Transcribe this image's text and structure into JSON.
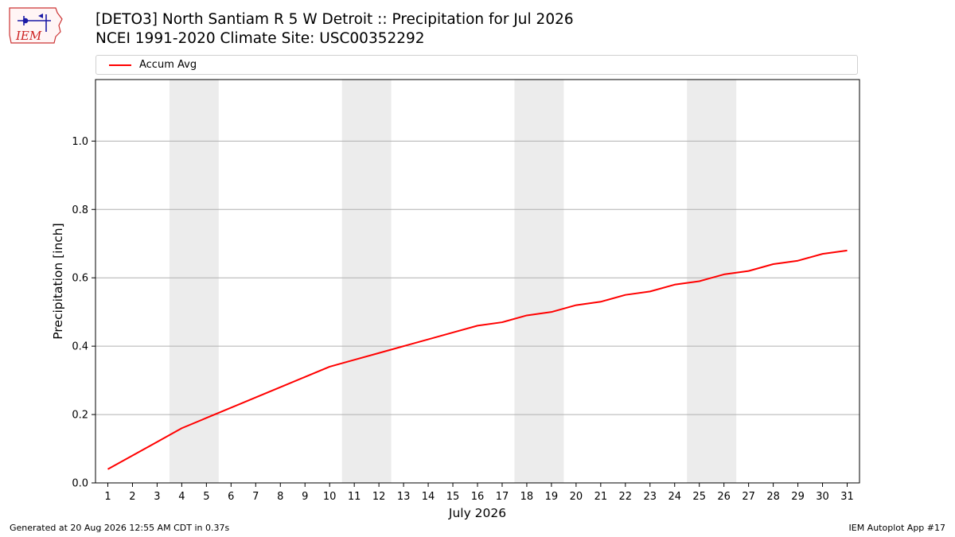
{
  "header": {
    "logo_text": "IEM",
    "title_line1": "[DETO3] North Santiam R 5 W Detroit :: Precipitation for Jul 2026",
    "title_line2": "NCEI 1991-2020 Climate Site: USC00352292"
  },
  "footer": {
    "generated": "Generated at 20 Aug 2026 12:55 AM CDT in 0.37s",
    "app": "IEM Autoplot App #17"
  },
  "colors": {
    "series": "#ff0000",
    "weekend_band": "#ececec",
    "grid": "#b0b0b0"
  },
  "chart_data": {
    "type": "line",
    "title": "[DETO3] North Santiam R 5 W Detroit :: Precipitation for Jul 2026",
    "subtitle": "NCEI 1991-2020 Climate Site: USC00352292",
    "xlabel": "July 2026",
    "ylabel": "Precipitation [inch]",
    "x": [
      1,
      2,
      3,
      4,
      5,
      6,
      7,
      8,
      9,
      10,
      11,
      12,
      13,
      14,
      15,
      16,
      17,
      18,
      19,
      20,
      21,
      22,
      23,
      24,
      25,
      26,
      27,
      28,
      29,
      30,
      31
    ],
    "xlim": [
      0.5,
      31.5
    ],
    "ylim": [
      0,
      1.18
    ],
    "yticks": [
      0.0,
      0.2,
      0.4,
      0.6,
      0.8,
      1.0
    ],
    "ytick_labels": [
      "0.0",
      "0.2",
      "0.4",
      "0.6",
      "0.8",
      "1.0"
    ],
    "grid": "horizontal",
    "legend_position": "top",
    "shaded_day_ranges": [
      [
        4,
        5
      ],
      [
        11,
        12
      ],
      [
        18,
        19
      ],
      [
        25,
        26
      ]
    ],
    "series": [
      {
        "name": "Accum Avg",
        "color": "#ff0000",
        "values": [
          0.04,
          0.08,
          0.12,
          0.16,
          0.19,
          0.22,
          0.25,
          0.28,
          0.31,
          0.34,
          0.36,
          0.38,
          0.4,
          0.42,
          0.44,
          0.46,
          0.47,
          0.49,
          0.5,
          0.52,
          0.53,
          0.55,
          0.56,
          0.58,
          0.59,
          0.61,
          0.62,
          0.64,
          0.65,
          0.67,
          0.68
        ]
      }
    ]
  }
}
